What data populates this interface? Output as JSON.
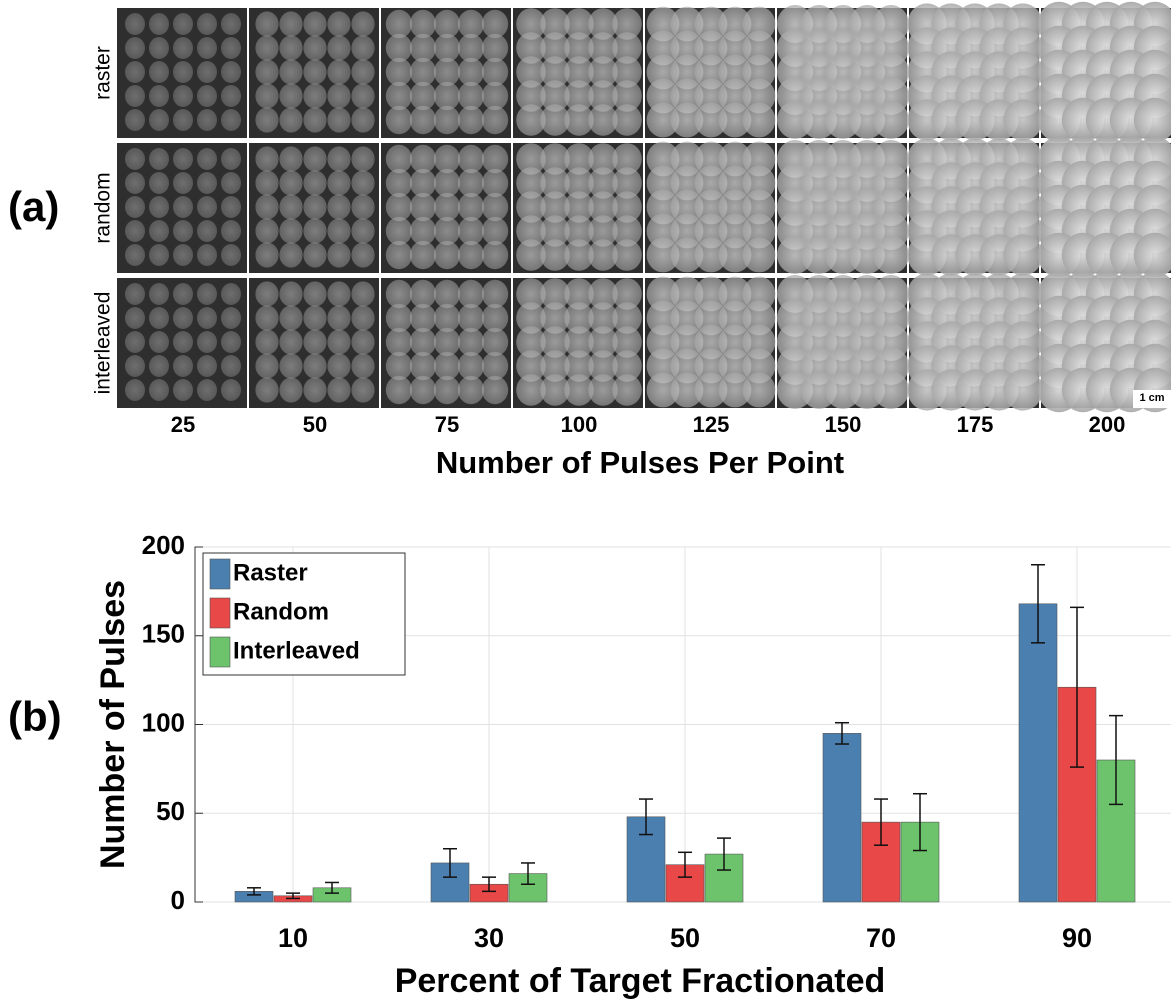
{
  "panel_a": {
    "label": "(a)",
    "rows": [
      "raster",
      "random",
      "interleaved"
    ],
    "columns": [
      25,
      50,
      75,
      100,
      125,
      150,
      175,
      200
    ],
    "xlabel": "Number of Pulses Per Point",
    "scale_bar": "1 cm"
  },
  "panel_b_label": "(b)",
  "chart_data": {
    "type": "bar",
    "xlabel": "Percent of Target Fractionated",
    "ylabel": "Number of Pulses",
    "categories": [
      "10",
      "30",
      "50",
      "70",
      "90"
    ],
    "series": [
      {
        "name": "Raster",
        "color": "#4a7fb0",
        "values": [
          6,
          22,
          48,
          95,
          168
        ],
        "errors": [
          2,
          8,
          10,
          6,
          22
        ]
      },
      {
        "name": "Random",
        "color": "#e84848",
        "values": [
          3.5,
          10,
          21,
          45,
          121
        ],
        "errors": [
          1.5,
          4,
          7,
          13,
          45
        ]
      },
      {
        "name": "Interleaved",
        "color": "#6cc36c",
        "values": [
          8,
          16,
          27,
          45,
          80
        ],
        "errors": [
          3,
          6,
          9,
          16,
          25
        ]
      }
    ],
    "ylim": [
      0,
      200
    ],
    "yticks": [
      0,
      50,
      100,
      150,
      200
    ],
    "grid": true,
    "legend": "upper left"
  }
}
